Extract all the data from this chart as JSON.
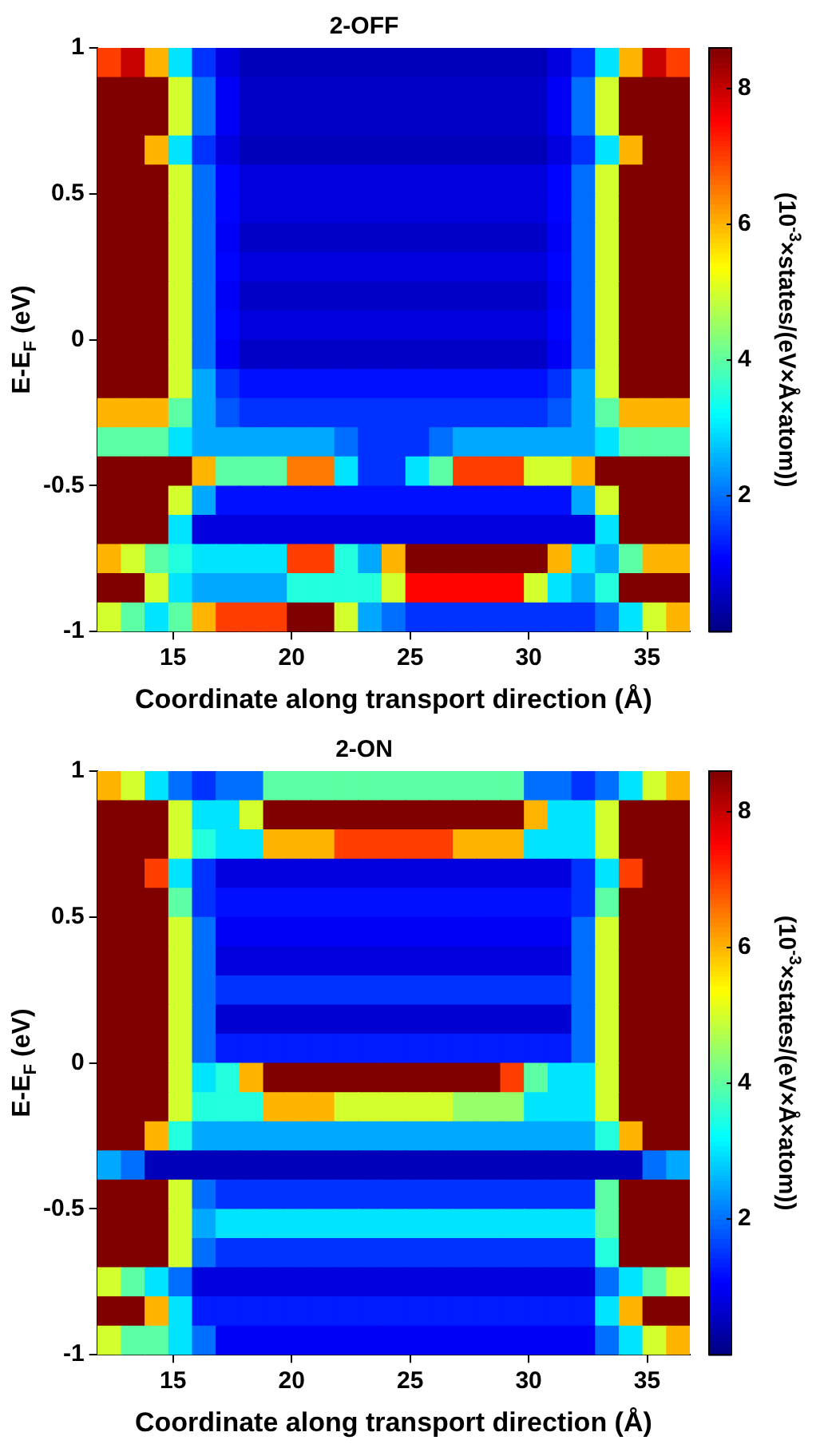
{
  "chart_data": [
    {
      "type": "heatmap",
      "title": "2-OFF",
      "xlabel": "Coordinate along transport direction (Å)",
      "ylabel": "E-E$_{F}$ (eV)",
      "clabel": "(10$^{-3}$×states/(eV×Å×atom))",
      "x": [
        12.3,
        13.3,
        14.3,
        15.3,
        16.3,
        17.3,
        18.3,
        19.3,
        20.3,
        21.3,
        22.3,
        23.3,
        24.3,
        25.3,
        26.3,
        27.3,
        28.3,
        29.3,
        30.3,
        31.3,
        32.3,
        33.3,
        34.3,
        35.3,
        36.3
      ],
      "y": [
        0.95,
        0.85,
        0.75,
        0.65,
        0.55,
        0.45,
        0.35,
        0.25,
        0.15,
        0.05,
        -0.05,
        -0.15,
        -0.25,
        -0.35,
        -0.45,
        -0.55,
        -0.65,
        -0.75,
        -0.85,
        -0.95
      ],
      "cells": [
        [
          7,
          8,
          6,
          3,
          1.5,
          0.8,
          0.5,
          0.5,
          0.5,
          0.5,
          0.5,
          0.5,
          0.5,
          0.5,
          0.5,
          0.5,
          0.5,
          0.5,
          0.5,
          0.8,
          1.5,
          3,
          6,
          8,
          7
        ],
        [
          8.6,
          8.6,
          8.6,
          5,
          2,
          1,
          0.6,
          0.6,
          0.6,
          0.6,
          0.6,
          0.6,
          0.6,
          0.6,
          0.6,
          0.6,
          0.6,
          0.6,
          0.6,
          1,
          2,
          5,
          8.6,
          8.6,
          8.6
        ],
        [
          8.6,
          8.6,
          8.6,
          5,
          2,
          1,
          0.6,
          0.6,
          0.6,
          0.6,
          0.6,
          0.6,
          0.6,
          0.6,
          0.6,
          0.6,
          0.6,
          0.6,
          0.6,
          1,
          2,
          5,
          8.6,
          8.6,
          8.6
        ],
        [
          8.6,
          8.6,
          6,
          3,
          1.5,
          0.8,
          0.5,
          0.5,
          0.5,
          0.5,
          0.5,
          0.5,
          0.5,
          0.5,
          0.5,
          0.5,
          0.5,
          0.5,
          0.5,
          0.8,
          1.5,
          3,
          6,
          8.6,
          8.6
        ],
        [
          8.6,
          8.6,
          8.6,
          5,
          2,
          1.1,
          0.8,
          0.8,
          0.8,
          0.8,
          0.8,
          0.8,
          0.8,
          0.8,
          0.8,
          0.8,
          0.8,
          0.8,
          0.8,
          1.1,
          2,
          5,
          8.6,
          8.6,
          8.6
        ],
        [
          8.6,
          8.6,
          8.6,
          5,
          2,
          1.1,
          0.8,
          0.8,
          0.8,
          0.8,
          0.8,
          0.8,
          0.8,
          0.8,
          0.8,
          0.8,
          0.8,
          0.8,
          0.8,
          1.1,
          2,
          5,
          8.6,
          8.6,
          8.6
        ],
        [
          8.6,
          8.6,
          8.6,
          5,
          2,
          1,
          0.6,
          0.6,
          0.6,
          0.6,
          0.6,
          0.6,
          0.6,
          0.6,
          0.6,
          0.6,
          0.6,
          0.6,
          0.6,
          1,
          2,
          5,
          8.6,
          8.6,
          8.6
        ],
        [
          8.6,
          8.6,
          8.6,
          5,
          2,
          1.1,
          0.8,
          0.8,
          0.8,
          0.8,
          0.8,
          0.8,
          0.8,
          0.8,
          0.8,
          0.8,
          0.8,
          0.8,
          0.8,
          1.1,
          2,
          5,
          8.6,
          8.6,
          8.6
        ],
        [
          8.6,
          8.6,
          8.6,
          5,
          2,
          1,
          0.6,
          0.6,
          0.6,
          0.6,
          0.6,
          0.6,
          0.6,
          0.6,
          0.6,
          0.6,
          0.6,
          0.6,
          0.6,
          1,
          2,
          5,
          8.6,
          8.6,
          8.6
        ],
        [
          8.6,
          8.6,
          8.6,
          5,
          2,
          1.1,
          0.8,
          0.8,
          0.8,
          0.8,
          0.8,
          0.8,
          0.8,
          0.8,
          0.8,
          0.8,
          0.8,
          0.8,
          0.8,
          1.1,
          2,
          5,
          8.6,
          8.6,
          8.6
        ],
        [
          8.6,
          8.6,
          8.6,
          5,
          2,
          1,
          0.6,
          0.6,
          0.6,
          0.6,
          0.6,
          0.6,
          0.6,
          0.6,
          0.6,
          0.6,
          0.6,
          0.6,
          0.6,
          1,
          2,
          5,
          8.6,
          8.6,
          8.6
        ],
        [
          8.6,
          8.6,
          8.6,
          5,
          2.5,
          1.5,
          1.2,
          1.2,
          1.2,
          1.2,
          1.2,
          1.2,
          1.2,
          1.2,
          1.2,
          1.2,
          1.2,
          1.2,
          1.2,
          1.5,
          2.5,
          5,
          8.6,
          8.6,
          8.6
        ],
        [
          6,
          6,
          6,
          4,
          2.5,
          1.8,
          1.5,
          1.5,
          1.5,
          1.5,
          1.5,
          1.5,
          1.5,
          1.5,
          1.5,
          1.5,
          1.5,
          1.5,
          1.5,
          1.8,
          2.5,
          4,
          6,
          6,
          6
        ],
        [
          4,
          4,
          4,
          3,
          2.5,
          2.5,
          2.5,
          2.5,
          2.5,
          2.5,
          2,
          1.5,
          1.5,
          1.5,
          2,
          2.5,
          2.5,
          2.5,
          2.5,
          2.5,
          2.5,
          3,
          4,
          4,
          4
        ],
        [
          8.6,
          8.6,
          8.6,
          8.6,
          6,
          4,
          4,
          4,
          6.5,
          6.5,
          3,
          1.5,
          1.5,
          3,
          4,
          7,
          7,
          7,
          5,
          5,
          6,
          8.6,
          8.6,
          8.6,
          8.6
        ],
        [
          8.6,
          8.6,
          8.6,
          5,
          2.5,
          1.2,
          1.2,
          1.2,
          1.2,
          1.2,
          1.2,
          1.2,
          1.2,
          1.2,
          1.2,
          1.2,
          1.2,
          1.2,
          1.2,
          1.2,
          2.5,
          5,
          8.6,
          8.6,
          8.6
        ],
        [
          8.6,
          8.6,
          8.6,
          3,
          0.8,
          0.8,
          0.8,
          0.8,
          0.8,
          0.8,
          0.8,
          0.8,
          0.8,
          0.8,
          0.8,
          0.8,
          0.8,
          0.8,
          0.8,
          0.8,
          0.8,
          3,
          8.6,
          8.6,
          8.6
        ],
        [
          6,
          5,
          4,
          3.5,
          3,
          3,
          3,
          3,
          7,
          7,
          3.5,
          2.5,
          6,
          8.6,
          8.6,
          8.6,
          8.6,
          8.6,
          8.6,
          6,
          3,
          2.5,
          4,
          6,
          6
        ],
        [
          8.6,
          8.6,
          5,
          3,
          2.5,
          2.5,
          2.5,
          2.5,
          3.5,
          3.5,
          3.5,
          3.5,
          5,
          7.5,
          7.5,
          7.5,
          7.5,
          7.5,
          5,
          3,
          2.5,
          3.5,
          8.6,
          8.6,
          8.6
        ],
        [
          5,
          4,
          3,
          4,
          6,
          7,
          7,
          7,
          8.6,
          8.6,
          5,
          2.5,
          2,
          1.5,
          1.5,
          1.5,
          1.5,
          1.5,
          1.5,
          1.5,
          1.5,
          2,
          3,
          5,
          6
        ]
      ],
      "clim": [
        0,
        8.6
      ],
      "cticks": [
        2,
        4,
        6,
        8
      ],
      "xlim": [
        11.8,
        36.8
      ],
      "xticks": [
        15,
        20,
        25,
        30,
        35
      ],
      "ylim": [
        -1,
        1
      ],
      "yticks": [
        -1,
        -0.5,
        0,
        0.5,
        1
      ]
    },
    {
      "type": "heatmap",
      "title": "2-ON",
      "xlabel": "Coordinate along transport direction (Å)",
      "ylabel": "E-E$_{F}$ (eV)",
      "clabel": "(10$^{-3}$×states/(eV×Å×atom))",
      "x": [
        12.3,
        13.3,
        14.3,
        15.3,
        16.3,
        17.3,
        18.3,
        19.3,
        20.3,
        21.3,
        22.3,
        23.3,
        24.3,
        25.3,
        26.3,
        27.3,
        28.3,
        29.3,
        30.3,
        31.3,
        32.3,
        33.3,
        34.3,
        35.3,
        36.3
      ],
      "y": [
        0.95,
        0.85,
        0.75,
        0.65,
        0.55,
        0.45,
        0.35,
        0.25,
        0.15,
        0.05,
        -0.05,
        -0.15,
        -0.25,
        -0.35,
        -0.45,
        -0.55,
        -0.65,
        -0.75,
        -0.85,
        -0.95
      ],
      "cells": [
        [
          6,
          5,
          3,
          2,
          1.5,
          2,
          2,
          4,
          4,
          4,
          4,
          4,
          4,
          4,
          4,
          4,
          4,
          4,
          2,
          2,
          1.5,
          2,
          3,
          5,
          6
        ],
        [
          8.6,
          8.6,
          8.6,
          5,
          3,
          3,
          5,
          8.6,
          8.6,
          8.6,
          8.6,
          8.6,
          8.6,
          8.6,
          8.6,
          8.6,
          8.6,
          8.6,
          6,
          3,
          3,
          5,
          8.6,
          8.6,
          8.6
        ],
        [
          8.6,
          8.6,
          8.6,
          5,
          3.5,
          3,
          3,
          6,
          6,
          6,
          7,
          7,
          7,
          7,
          7,
          6,
          6,
          6,
          3,
          3,
          3,
          5,
          8.6,
          8.6,
          8.6
        ],
        [
          8.6,
          8.6,
          7,
          3,
          1.5,
          0.8,
          0.8,
          0.8,
          0.8,
          0.8,
          0.8,
          0.8,
          0.8,
          0.8,
          0.8,
          0.8,
          0.8,
          0.8,
          0.8,
          0.8,
          1.5,
          3,
          7,
          8.6,
          8.6
        ],
        [
          8.6,
          8.6,
          8.6,
          4,
          1.5,
          1.2,
          1.2,
          1.2,
          1.2,
          1.2,
          1.2,
          1.2,
          1.2,
          1.2,
          1.2,
          1.2,
          1.2,
          1.2,
          1.2,
          1.2,
          1.5,
          4,
          8.6,
          8.6,
          8.6
        ],
        [
          8.6,
          8.6,
          8.6,
          5,
          2,
          1,
          1,
          1,
          1,
          1,
          1,
          1,
          1,
          1,
          1,
          1,
          1,
          1,
          1,
          1,
          2,
          5,
          8.6,
          8.6,
          8.6
        ],
        [
          8.6,
          8.6,
          8.6,
          5,
          2,
          0.8,
          0.8,
          0.8,
          0.8,
          0.8,
          0.8,
          0.8,
          0.8,
          0.8,
          0.8,
          0.8,
          0.8,
          0.8,
          0.8,
          0.8,
          2,
          5,
          8.6,
          8.6,
          8.6
        ],
        [
          8.6,
          8.6,
          8.6,
          5,
          2,
          1.5,
          1.5,
          1.5,
          1.5,
          1.5,
          1.5,
          1.5,
          1.5,
          1.5,
          1.5,
          1.5,
          1.5,
          1.5,
          1.5,
          1.5,
          2,
          5,
          8.6,
          8.6,
          8.6
        ],
        [
          8.6,
          8.6,
          8.6,
          5,
          2,
          0.7,
          0.7,
          0.7,
          0.7,
          0.7,
          0.7,
          0.7,
          0.7,
          0.7,
          0.7,
          0.7,
          0.7,
          0.7,
          0.7,
          0.7,
          2,
          5,
          8.6,
          8.6,
          8.6
        ],
        [
          8.6,
          8.6,
          8.6,
          5,
          2,
          1.3,
          1.3,
          1.3,
          1.3,
          1.3,
          1.3,
          1.3,
          1.3,
          1.3,
          1.3,
          1.3,
          1.3,
          1.3,
          1.3,
          1.3,
          2,
          5,
          8.6,
          8.6,
          8.6
        ],
        [
          8.6,
          8.6,
          8.6,
          5,
          3,
          3.5,
          6,
          8.6,
          8.6,
          8.6,
          8.6,
          8.6,
          8.6,
          8.6,
          8.6,
          8.6,
          8.6,
          7,
          4,
          3,
          3,
          5,
          8.6,
          8.6,
          8.6
        ],
        [
          8.6,
          8.6,
          8.6,
          5,
          3.5,
          3.5,
          3.5,
          6,
          6,
          6,
          5,
          5,
          5,
          5,
          5,
          4.5,
          4.5,
          4.5,
          3,
          3,
          3,
          5,
          8.6,
          8.6,
          8.6
        ],
        [
          8.6,
          8.6,
          6,
          3.5,
          2.5,
          2.5,
          2.5,
          2.5,
          2.5,
          2.5,
          2.5,
          2.5,
          2.5,
          2.5,
          2.5,
          2.5,
          2.5,
          2.5,
          2.5,
          2.5,
          2.5,
          3.5,
          6,
          8.6,
          8.6
        ],
        [
          2.5,
          2,
          0.5,
          0.5,
          0.5,
          0.5,
          0.5,
          0.5,
          0.5,
          0.5,
          0.5,
          0.5,
          0.5,
          0.5,
          0.5,
          0.5,
          0.5,
          0.5,
          0.5,
          0.5,
          0.5,
          0.5,
          0.5,
          2,
          2.5
        ],
        [
          8.6,
          8.6,
          8.6,
          5,
          2,
          1.5,
          1.5,
          1.5,
          1.5,
          1.5,
          1.5,
          1.5,
          1.5,
          1.5,
          1.5,
          1.5,
          1.5,
          1.5,
          1.5,
          1.5,
          1.5,
          4,
          8.6,
          8.6,
          8.6
        ],
        [
          8.6,
          8.6,
          8.6,
          5,
          2.5,
          3,
          3,
          3,
          3,
          3,
          3,
          3,
          3,
          3,
          3,
          3,
          3,
          3,
          3,
          3,
          3,
          4,
          8.6,
          8.6,
          8.6
        ],
        [
          8.6,
          8.6,
          8.6,
          5,
          2,
          1.5,
          1.5,
          1.5,
          1.5,
          1.5,
          1.5,
          1.5,
          1.5,
          1.5,
          1.5,
          1.5,
          1.5,
          1.5,
          1.5,
          1.5,
          1.5,
          3.5,
          8.6,
          8.6,
          8.6
        ],
        [
          5,
          4,
          3,
          2,
          0.8,
          0.8,
          0.8,
          0.8,
          0.8,
          0.8,
          0.8,
          0.8,
          0.8,
          0.8,
          0.8,
          0.8,
          0.8,
          0.8,
          0.8,
          0.8,
          0.8,
          2,
          3,
          4,
          5
        ],
        [
          8.6,
          8.6,
          6,
          3,
          1.3,
          1.3,
          1.3,
          1.3,
          1.3,
          1.3,
          1.3,
          1.3,
          1.3,
          1.3,
          1.3,
          1.3,
          1.3,
          1.3,
          1.3,
          1.3,
          1.3,
          3,
          6,
          8.6,
          8.6
        ],
        [
          5,
          4,
          4,
          3,
          2,
          1,
          1,
          1,
          1,
          1,
          1,
          1,
          1,
          1,
          1,
          1,
          1,
          1,
          1,
          1,
          1,
          2,
          3,
          5,
          6
        ]
      ],
      "clim": [
        0,
        8.6
      ],
      "cticks": [
        2,
        4,
        6,
        8
      ],
      "xlim": [
        11.8,
        36.8
      ],
      "xticks": [
        15,
        20,
        25,
        30,
        35
      ],
      "ylim": [
        -1,
        1
      ],
      "yticks": [
        -1,
        -0.5,
        0,
        0.5,
        1
      ]
    }
  ]
}
